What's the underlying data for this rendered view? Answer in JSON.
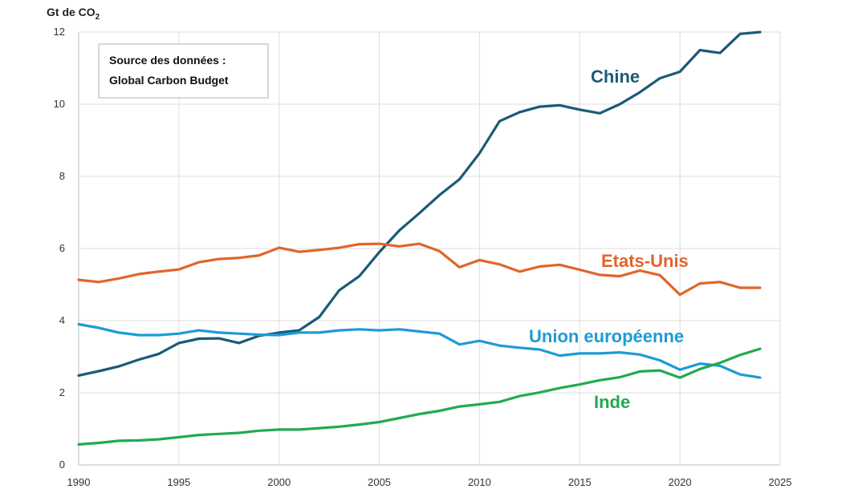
{
  "chart_data": {
    "type": "line",
    "title": "",
    "ylabel_main": "Gt de CO",
    "ylabel_sub": "2",
    "xlabel": "",
    "xlim": [
      1990,
      2025
    ],
    "ylim": [
      0,
      12
    ],
    "xticks": [
      1990,
      1995,
      2000,
      2005,
      2010,
      2015,
      2020,
      2025
    ],
    "yticks": [
      0,
      2,
      4,
      6,
      8,
      10,
      12
    ],
    "grid": true,
    "source_lines": [
      "Source des données :",
      "Global Carbon Budget"
    ],
    "x": [
      1990,
      1991,
      1992,
      1993,
      1994,
      1995,
      1996,
      1997,
      1998,
      1999,
      2000,
      2001,
      2002,
      2003,
      2004,
      2005,
      2006,
      2007,
      2008,
      2009,
      2010,
      2011,
      2012,
      2013,
      2014,
      2015,
      2016,
      2017,
      2018,
      2019,
      2020,
      2021,
      2022,
      2023,
      2024
    ],
    "series": [
      {
        "name": "Chine",
        "color": "#1a5a78",
        "values": [
          2.48,
          2.6,
          2.73,
          2.92,
          3.08,
          3.38,
          3.5,
          3.51,
          3.38,
          3.58,
          3.67,
          3.73,
          4.1,
          4.84,
          5.23,
          5.9,
          6.5,
          6.98,
          7.48,
          7.92,
          8.64,
          9.53,
          9.78,
          9.93,
          9.97,
          9.85,
          9.75,
          10.0,
          10.33,
          10.72,
          10.9,
          11.5,
          11.42,
          11.95,
          12.0
        ]
      },
      {
        "name": "Etats-Unis",
        "color": "#e0652a",
        "values": [
          5.13,
          5.07,
          5.17,
          5.29,
          5.36,
          5.42,
          5.62,
          5.71,
          5.74,
          5.81,
          6.02,
          5.91,
          5.96,
          6.02,
          6.12,
          6.13,
          6.06,
          6.13,
          5.93,
          5.48,
          5.68,
          5.56,
          5.36,
          5.5,
          5.55,
          5.41,
          5.27,
          5.23,
          5.39,
          5.26,
          4.72,
          5.03,
          5.07,
          4.91,
          4.91
        ]
      },
      {
        "name": "Union européenne",
        "color": "#1d9bd7",
        "values": [
          3.9,
          3.8,
          3.67,
          3.6,
          3.6,
          3.64,
          3.73,
          3.67,
          3.64,
          3.61,
          3.6,
          3.67,
          3.67,
          3.73,
          3.76,
          3.73,
          3.76,
          3.7,
          3.64,
          3.34,
          3.44,
          3.31,
          3.25,
          3.2,
          3.03,
          3.09,
          3.09,
          3.12,
          3.06,
          2.9,
          2.64,
          2.81,
          2.75,
          2.51,
          2.42
        ]
      },
      {
        "name": "Inde",
        "color": "#22aa50",
        "values": [
          0.57,
          0.61,
          0.67,
          0.68,
          0.71,
          0.77,
          0.83,
          0.86,
          0.89,
          0.95,
          0.98,
          0.98,
          1.02,
          1.06,
          1.12,
          1.19,
          1.3,
          1.41,
          1.5,
          1.62,
          1.68,
          1.75,
          1.91,
          2.01,
          2.13,
          2.23,
          2.35,
          2.43,
          2.59,
          2.62,
          2.42,
          2.66,
          2.83,
          3.05,
          3.22
        ]
      }
    ]
  }
}
